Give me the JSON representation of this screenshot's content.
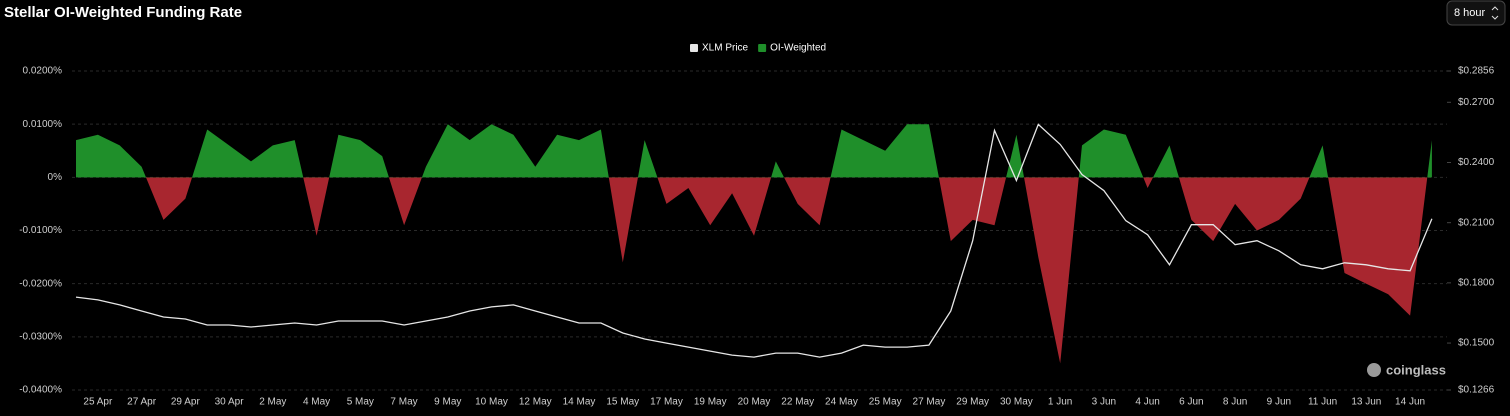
{
  "chart_data": {
    "type": "area-line",
    "title": "Stellar OI-Weighted Funding Rate",
    "categories": [
      null,
      "25 Apr",
      null,
      "27 Apr",
      null,
      "29 Apr",
      null,
      "30 Apr",
      null,
      "2 May",
      null,
      "4 May",
      null,
      "5 May",
      null,
      "7 May",
      null,
      "9 May",
      null,
      "10 May",
      null,
      "12 May",
      null,
      "14 May",
      null,
      "15 May",
      null,
      "17 May",
      null,
      "19 May",
      null,
      "20 May",
      null,
      "22 May",
      null,
      "24 May",
      null,
      "25 May",
      null,
      "27 May",
      null,
      "29 May",
      null,
      "30 May",
      null,
      "1 Jun",
      null,
      "3 Jun",
      null,
      "4 Jun",
      null,
      "6 Jun",
      null,
      "8 Jun",
      null,
      "9 Jun",
      null,
      "11 Jun",
      null,
      "13 Jun",
      null,
      "14 Jun",
      null
    ],
    "series": [
      {
        "name": "XLM Price",
        "color": "#e6e6e6",
        "axis": "y2",
        "values": [
          0.1729,
          0.1715,
          0.169,
          0.166,
          0.163,
          0.162,
          0.159,
          0.159,
          0.158,
          0.159,
          0.16,
          0.159,
          0.161,
          0.161,
          0.161,
          0.159,
          0.161,
          0.163,
          0.166,
          0.168,
          0.169,
          0.166,
          0.163,
          0.16,
          0.16,
          0.155,
          0.152,
          0.15,
          0.148,
          0.146,
          0.144,
          0.143,
          0.145,
          0.145,
          0.143,
          0.145,
          0.149,
          0.148,
          0.148,
          0.149,
          0.166,
          0.201,
          0.256,
          0.231,
          0.259,
          0.249,
          0.234,
          0.226,
          0.211,
          0.204,
          0.189,
          0.209,
          0.209,
          0.199,
          0.201,
          0.196,
          0.189,
          0.187,
          0.19,
          0.189,
          0.187,
          0.186,
          0.212
        ]
      },
      {
        "name": "OI-Weighted",
        "color": "#1f8f2a",
        "negative_color": "#a8262f",
        "axis": "y",
        "values": [
          0.007,
          0.008,
          0.006,
          0.002,
          -0.008,
          -0.004,
          0.009,
          0.006,
          0.003,
          0.006,
          0.007,
          -0.011,
          0.008,
          0.007,
          0.004,
          -0.009,
          0.002,
          0.01,
          0.007,
          0.01,
          0.008,
          0.002,
          0.008,
          0.007,
          0.009,
          -0.016,
          0.007,
          -0.005,
          -0.002,
          -0.009,
          -0.003,
          -0.011,
          0.003,
          -0.005,
          -0.009,
          0.009,
          0.007,
          0.005,
          0.01,
          0.01,
          -0.012,
          -0.008,
          -0.009,
          0.008,
          -0.015,
          -0.035,
          0.006,
          0.009,
          0.008,
          -0.002,
          0.006,
          -0.008,
          -0.012,
          -0.005,
          -0.01,
          -0.008,
          -0.004,
          0.006,
          -0.018,
          -0.02,
          -0.022,
          -0.026,
          0.007
        ]
      }
    ],
    "ylim": [
      -0.04,
      0.02
    ],
    "yticks": [
      {
        "value": 0.02,
        "label": "0.0200%"
      },
      {
        "value": 0.01,
        "label": "0.0100%"
      },
      {
        "value": 0,
        "label": "0%"
      },
      {
        "value": -0.01,
        "label": "-0.0100%"
      },
      {
        "value": -0.02,
        "label": "-0.0200%"
      },
      {
        "value": -0.03,
        "label": "-0.0300%"
      },
      {
        "value": -0.04,
        "label": "-0.0400%"
      }
    ],
    "y2lim": [
      0.1266,
      0.2856
    ],
    "y2ticks": [
      {
        "value": 0.2856,
        "label": "$0.2856"
      },
      {
        "value": 0.27,
        "label": "$0.2700"
      },
      {
        "value": 0.24,
        "label": "$0.2400"
      },
      {
        "value": 0.21,
        "label": "$0.2100"
      },
      {
        "value": 0.18,
        "label": "$0.1800"
      },
      {
        "value": 0.15,
        "label": "$0.1500"
      },
      {
        "value": 0.1266,
        "label": "$0.1266"
      }
    ],
    "grid": true,
    "legend": "top"
  },
  "controls": {
    "interval": "8 hour"
  },
  "watermark": "coinglass"
}
